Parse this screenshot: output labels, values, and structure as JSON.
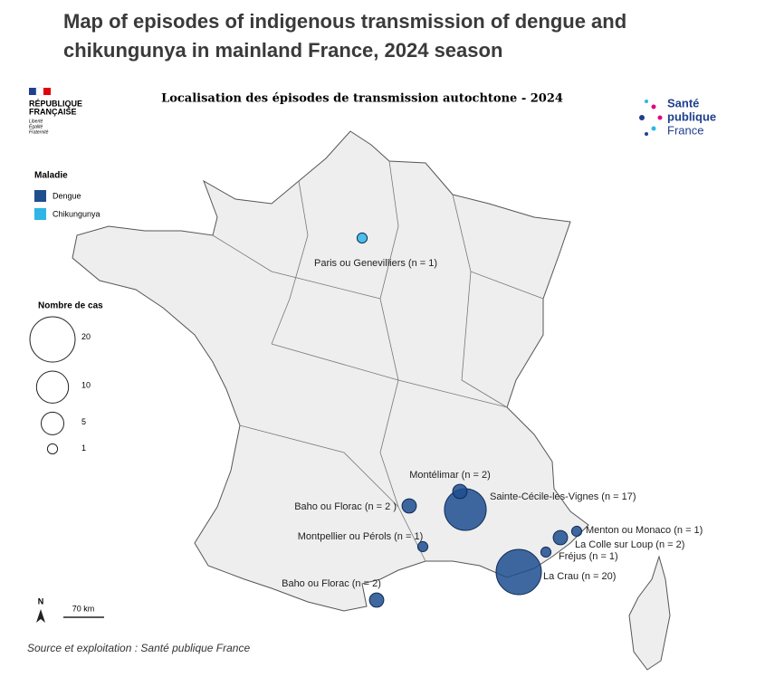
{
  "header": {
    "title": "Map of episodes of indigenous transmission of dengue and chikungunya in mainland France, 2024 season"
  },
  "map": {
    "title": "Localisation des épisodes de transmission autochtone - 2024",
    "logo_left": [
      "RÉPUBLIQUE",
      "FRANÇAISE",
      "Liberté",
      "Égalité",
      "Fraternité"
    ],
    "logo_right": [
      "Santé",
      "publique",
      "France"
    ],
    "legend_disease": {
      "title": "Maladie",
      "items": [
        {
          "name": "Dengue",
          "color": "#1f4e8f"
        },
        {
          "name": "Chikungunya",
          "color": "#2db6e6"
        }
      ]
    },
    "legend_size": {
      "title": "Nombre de cas",
      "values": [
        20,
        10,
        5,
        1
      ]
    },
    "episodes": [
      {
        "label": "Paris ou Genevilliers (n = 1)",
        "n": 1,
        "disease": "Chikungunya"
      },
      {
        "label": "Montélimar (n = 2)",
        "n": 2,
        "disease": "Dengue"
      },
      {
        "label": "Sainte-Cécile-les-Vignes (n = 17)",
        "n": 17,
        "disease": "Dengue"
      },
      {
        "label": "Baho ou Florac (n = 2 )",
        "n": 2,
        "disease": "Dengue"
      },
      {
        "label": "Montpellier ou Pérols (n = 1)",
        "n": 1,
        "disease": "Dengue"
      },
      {
        "label": "Baho ou Florac (n = 2)",
        "n": 2,
        "disease": "Dengue"
      },
      {
        "label": "La Crau (n = 20)",
        "n": 20,
        "disease": "Dengue"
      },
      {
        "label": "Fréjus (n = 1)",
        "n": 1,
        "disease": "Dengue"
      },
      {
        "label": "La Colle sur Loup (n = 2)",
        "n": 2,
        "disease": "Dengue"
      },
      {
        "label": "Menton ou Monaco (n = 1)",
        "n": 1,
        "disease": "Dengue"
      }
    ],
    "north": "N",
    "scale": "70 km"
  },
  "source": "Source et exploitation : Santé publique France"
}
